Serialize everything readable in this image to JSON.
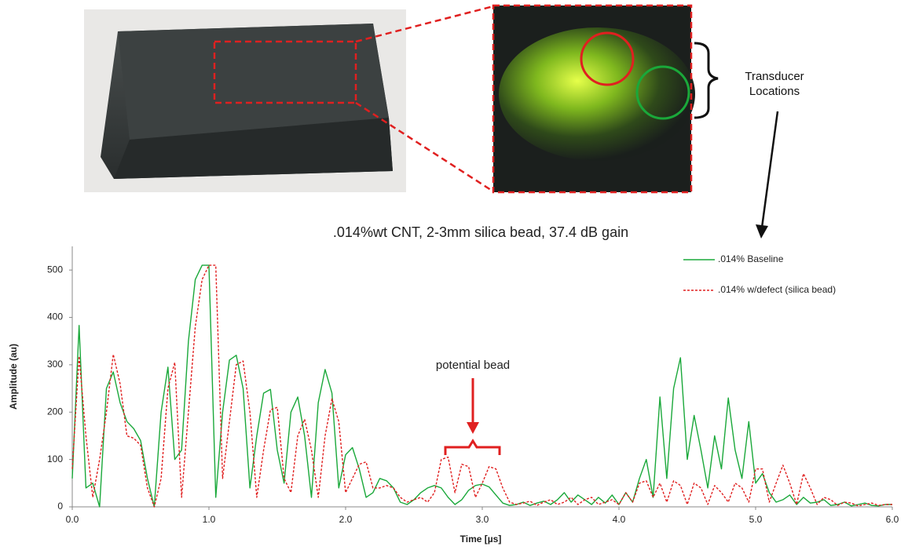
{
  "chart_data": {
    "type": "line",
    "title": ".014%wt CNT, 2-3mm silica bead, 37.4 dB gain",
    "x_label": "Time [µs]",
    "y_label": "Amplitude (au)",
    "annotations": [
      "potential bead",
      "Transducer Locations"
    ],
    "x": [
      0,
      0.05,
      0.1,
      0.15,
      0.2,
      0.25,
      0.3,
      0.35,
      0.4,
      0.45,
      0.5,
      0.55,
      0.6,
      0.65,
      0.7,
      0.75,
      0.8,
      0.85,
      0.9,
      0.95,
      1,
      1.05,
      1.1,
      1.15,
      1.2,
      1.25,
      1.3,
      1.35,
      1.4,
      1.45,
      1.5,
      1.55,
      1.6,
      1.65,
      1.7,
      1.75,
      1.8,
      1.85,
      1.9,
      1.95,
      2,
      2.05,
      2.1,
      2.15,
      2.2,
      2.25,
      2.3,
      2.35,
      2.4,
      2.45,
      2.5,
      2.55,
      2.6,
      2.65,
      2.7,
      2.75,
      2.8,
      2.85,
      2.9,
      2.95,
      3,
      3.05,
      3.1,
      3.15,
      3.2,
      3.25,
      3.3,
      3.35,
      3.4,
      3.45,
      3.5,
      3.55,
      3.6,
      3.65,
      3.7,
      3.75,
      3.8,
      3.85,
      3.9,
      3.95,
      4,
      4.05,
      4.1,
      4.15,
      4.2,
      4.25,
      4.3,
      4.35,
      4.4,
      4.45,
      4.5,
      4.55,
      4.6,
      4.65,
      4.7,
      4.75,
      4.8,
      4.85,
      4.9,
      4.95,
      5,
      5.05,
      5.1,
      5.15,
      5.2,
      5.25,
      5.3,
      5.35,
      5.4,
      5.45,
      5.5,
      5.55,
      5.6,
      5.65,
      5.7,
      5.75,
      5.8,
      5.85,
      5.9,
      5.95,
      6
    ],
    "series": [
      {
        "name": ".014% Baseline",
        "color": "#1aa83a",
        "line_style": "solid",
        "values": [
          60,
          383,
          40,
          50,
          0,
          250,
          285,
          220,
          180,
          165,
          140,
          60,
          0,
          200,
          295,
          100,
          120,
          350,
          480,
          510,
          510,
          20,
          200,
          310,
          320,
          250,
          40,
          150,
          240,
          248,
          120,
          50,
          200,
          232,
          150,
          20,
          220,
          290,
          240,
          40,
          110,
          125,
          80,
          20,
          30,
          60,
          55,
          40,
          10,
          5,
          15,
          30,
          40,
          45,
          40,
          20,
          5,
          15,
          35,
          45,
          48,
          42,
          25,
          8,
          3,
          5,
          10,
          3,
          8,
          12,
          5,
          15,
          30,
          10,
          25,
          15,
          5,
          20,
          8,
          25,
          5,
          30,
          10,
          60,
          100,
          20,
          232,
          60,
          250,
          315,
          100,
          193,
          120,
          40,
          150,
          80,
          230,
          120,
          60,
          180,
          50,
          70,
          30,
          10,
          15,
          25,
          5,
          20,
          8,
          10,
          15,
          3,
          5,
          10,
          2,
          5,
          8,
          3,
          2,
          5,
          5
        ]
      },
      {
        "name": ".014% w/defect (silica bead)",
        "color": "#e02020",
        "line_style": "dashed",
        "values": [
          80,
          318,
          150,
          20,
          100,
          200,
          322,
          260,
          150,
          145,
          130,
          40,
          0,
          60,
          250,
          305,
          20,
          200,
          380,
          480,
          510,
          510,
          60,
          180,
          300,
          308,
          200,
          20,
          120,
          205,
          210,
          60,
          30,
          150,
          185,
          120,
          20,
          150,
          228,
          180,
          30,
          60,
          90,
          95,
          40,
          40,
          45,
          40,
          20,
          10,
          15,
          20,
          10,
          30,
          100,
          105,
          30,
          90,
          85,
          20,
          50,
          85,
          80,
          40,
          10,
          5,
          8,
          12,
          3,
          10,
          15,
          5,
          10,
          20,
          5,
          15,
          20,
          5,
          10,
          15,
          5,
          30,
          10,
          50,
          55,
          20,
          50,
          10,
          55,
          45,
          5,
          50,
          40,
          5,
          45,
          30,
          10,
          50,
          40,
          10,
          80,
          80,
          10,
          50,
          88,
          50,
          5,
          70,
          40,
          5,
          20,
          15,
          3,
          10,
          8,
          2,
          5,
          8,
          3,
          5,
          5
        ]
      }
    ],
    "xlim": [
      0,
      6
    ],
    "xticks": [
      {
        "value": 0,
        "label": "0.0"
      },
      {
        "value": 1,
        "label": "1.0"
      },
      {
        "value": 2,
        "label": "2.0"
      },
      {
        "value": 3,
        "label": "3.0"
      },
      {
        "value": 4,
        "label": "4.0"
      },
      {
        "value": 5,
        "label": "5.0"
      },
      {
        "value": 6,
        "label": "6.0"
      }
    ],
    "ylim": [
      0,
      550
    ],
    "yticks": [
      0,
      100,
      200,
      300,
      400,
      500
    ],
    "legend": "upper right",
    "grid": false
  }
}
